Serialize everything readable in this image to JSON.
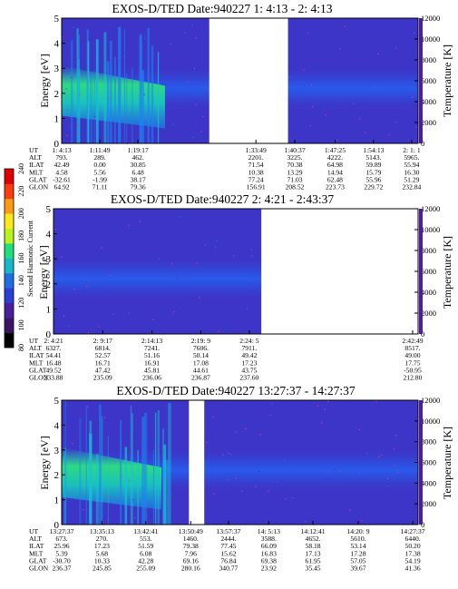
{
  "chart_data": [
    {
      "type": "heatmap",
      "title": "EXOS-D/TED   Date:940227  1: 4:13 - 2: 4:13",
      "ylabel": "Energy [eV]",
      "ylabel_right": "Temperature [K]",
      "ylim": [
        0,
        5
      ],
      "yticks": [
        "0",
        "1",
        "2",
        "3",
        "4",
        "5"
      ],
      "ylim_right": [
        0,
        12000
      ],
      "yticks_right": [
        "0",
        "2000",
        "4000",
        "6000",
        "8000",
        "10000",
        "12000"
      ],
      "gaps": [
        [
          0.414,
          0.635
        ]
      ],
      "band_center_ev": 2.2,
      "ephemeris": {
        "labels": [
          "UT",
          "ALT",
          "ILAT",
          "MLT",
          "GLAT",
          "GLON"
        ],
        "columns": [
          {
            "pos": 0.0,
            "values": [
              "1: 4:13",
              "793.",
              "42.49",
              "4.58",
              "-32.61",
              "64.92"
            ]
          },
          {
            "pos": 0.107,
            "values": [
              "1:11:49",
              "289.",
              "0.00",
              "5.56",
              "-1.99",
              "71.11"
            ]
          },
          {
            "pos": 0.214,
            "values": [
              "1:19:17",
              "462.",
              "30.85",
              "6.48",
              "38.17",
              "79.36"
            ]
          },
          {
            "pos": 0.545,
            "values": [
              "1:33:49",
              "2201.",
              "71.54",
              "10.38",
              "77.24",
              "156.91"
            ]
          },
          {
            "pos": 0.654,
            "values": [
              "1:40:37",
              "3225.",
              "70.38",
              "13.29",
              "71.03",
              "208.52"
            ]
          },
          {
            "pos": 0.767,
            "values": [
              "1:47:25",
              "4222.",
              "64.98",
              "14.94",
              "62.48",
              "223.73"
            ]
          },
          {
            "pos": 0.875,
            "values": [
              "1:54:13",
              "5143.",
              "59.89",
              "15.79",
              "55.96",
              "229.72"
            ]
          },
          {
            "pos": 0.982,
            "values": [
              "2: 1: 1",
              "5965.",
              "55.94",
              "16.30",
              "51.29",
              "232.84"
            ]
          }
        ]
      }
    },
    {
      "type": "heatmap",
      "title": "EXOS-D/TED   Date:940227  2: 4:21 - 2:43:37",
      "ylabel": "Energy [eV]",
      "ylabel_right": "Temperature [K]",
      "ylim": [
        0,
        5
      ],
      "yticks": [
        "0",
        "1",
        "2",
        "3",
        "4",
        "5"
      ],
      "ylim_right": [
        0,
        12000
      ],
      "yticks_right": [
        "0",
        "2000",
        "4000",
        "6000",
        "8000",
        "10000",
        "12000"
      ],
      "gaps": [
        [
          0.57,
          1.0
        ]
      ],
      "band_center_ev": 2.2,
      "ephemeris": {
        "labels": [
          "UT",
          "ALT",
          "ILAT",
          "MLT",
          "GLAT",
          "GLON"
        ],
        "columns": [
          {
            "pos": 0.0,
            "values": [
              "2: 4:21",
              "6327.",
              "54.41",
              "16.48",
              "49.52",
              "233.88"
            ]
          },
          {
            "pos": 0.135,
            "values": [
              "2: 9:17",
              "6814.",
              "52.57",
              "16.71",
              "47.42",
              "235.09"
            ]
          },
          {
            "pos": 0.27,
            "values": [
              "2:14:13",
              "7241.",
              "51.16",
              "16.91",
              "45.81",
              "236.06"
            ]
          },
          {
            "pos": 0.404,
            "values": [
              "2:19: 9",
              "7606.",
              "50.14",
              "17.08",
              "44.61",
              "236.87"
            ]
          },
          {
            "pos": 0.537,
            "values": [
              "2:24: 5",
              "7911.",
              "49.42",
              "17.23",
              "43.75",
              "237.60"
            ]
          },
          {
            "pos": 0.985,
            "values": [
              "2:42:49",
              "8517.",
              "49.00",
              "17.75",
              "-50.95",
              "212.80"
            ]
          }
        ]
      }
    },
    {
      "type": "heatmap",
      "title": "EXOS-D/TED   Date:940227  13:27:37 - 14:27:37",
      "ylabel": "Energy [eV]",
      "ylabel_right": "Temperature [K]",
      "ylim": [
        0,
        5
      ],
      "yticks": [
        "0",
        "1",
        "2",
        "3",
        "4",
        "5"
      ],
      "ylim_right": [
        0,
        12000
      ],
      "yticks_right": [
        "0",
        "2000",
        "4000",
        "6000",
        "8000",
        "10000",
        "12000"
      ],
      "gaps": [
        [
          0.357,
          0.4
        ]
      ],
      "band_center_ev": 2.2,
      "ephemeris": {
        "labels": [
          "UT",
          "ALT",
          "ILAT",
          "MLT",
          "GLAT",
          "GLON"
        ],
        "columns": [
          {
            "pos": 0.0,
            "values": [
              "13:27:37",
              "673.",
              "25.96",
              "5.39",
              "-30.70",
              "236.37"
            ]
          },
          {
            "pos": 0.113,
            "values": [
              "13:35:13",
              "270.",
              "17.23",
              "5.68",
              "10.33",
              "245.85"
            ]
          },
          {
            "pos": 0.236,
            "values": [
              "13:42:41",
              "553.",
              "51.59",
              "6.08",
              "42.28",
              "255.09"
            ]
          },
          {
            "pos": 0.362,
            "values": [
              "13:50:49",
              "1460.",
              "79.38",
              "7.96",
              "69.16",
              "280.16"
            ]
          },
          {
            "pos": 0.468,
            "values": [
              "13:57:37",
              "2444.",
              "77.45",
              "15.62",
              "76.84",
              "340.77"
            ]
          },
          {
            "pos": 0.581,
            "values": [
              "14: 5:13",
              "3588.",
              "66.09",
              "16.83",
              "69.38",
              "23.92"
            ]
          },
          {
            "pos": 0.705,
            "values": [
              "14:12:41",
              "4652.",
              "58.18",
              "17.13",
              "61.95",
              "35.45"
            ]
          },
          {
            "pos": 0.832,
            "values": [
              "14:20: 9",
              "5610.",
              "53.14",
              "17.28",
              "57.05",
              "39.67"
            ]
          },
          {
            "pos": 0.985,
            "values": [
              "14:27:37",
              "6440.",
              "50.20",
              "17.38",
              "54.19",
              "41.36"
            ]
          }
        ]
      }
    }
  ],
  "colorbar": {
    "label": "Second Harmonic Current",
    "ticks": [
      "80",
      "100",
      "120",
      "140",
      "160",
      "180",
      "200",
      "220",
      "240"
    ],
    "colors": [
      "#000000",
      "#3c1466",
      "#4b1f9b",
      "#2a3fd6",
      "#1f6ee8",
      "#15b8c8",
      "#1fe07a",
      "#b9f21c",
      "#ffe81c",
      "#ff9a12",
      "#ff3b10",
      "#e00000"
    ]
  }
}
